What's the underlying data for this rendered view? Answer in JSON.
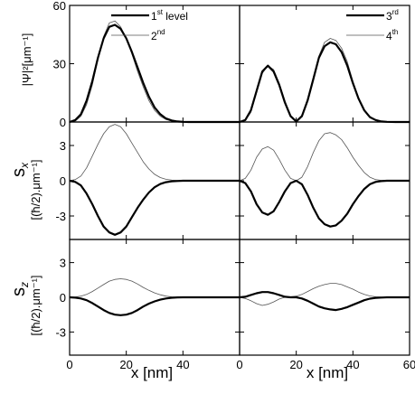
{
  "chart_data": {
    "type": "line",
    "x_label": "x [nm]",
    "panels": {
      "psi": {
        "ylabel": "|Ψ|²[μm⁻¹]",
        "ylim": [
          0,
          60
        ],
        "yticks": [
          "0",
          "30",
          "60"
        ],
        "ytick_values": [
          0,
          30,
          60
        ]
      },
      "sx": {
        "ylabel_symbol": "s",
        "ylabel_sub": "x",
        "ylabel_unit": "[(ħ/2).μm⁻¹]",
        "ylim": [
          -5,
          5
        ],
        "yticks": [
          "3",
          "0",
          "-3"
        ],
        "ytick_values": [
          3,
          0,
          -3
        ]
      },
      "sz": {
        "ylabel_symbol": "s",
        "ylabel_sub": "z",
        "ylabel_unit": "[(ħ/2).μm⁻¹]",
        "ylim": [
          -5,
          5
        ],
        "yticks": [
          "3",
          "0",
          "-3"
        ],
        "ytick_values": [
          3,
          0,
          -3
        ]
      }
    },
    "columns": [
      {
        "xlim": [
          0,
          60
        ],
        "xticks": [
          "0",
          "20",
          "40"
        ],
        "xtick_values": [
          0,
          20,
          40
        ],
        "legend": [
          {
            "base": "1",
            "sup": "st",
            "tail": " level",
            "style": "thick"
          },
          {
            "base": "2",
            "sup": "nd",
            "tail": "",
            "style": "thin"
          }
        ],
        "series": {
          "psi": {
            "thick": {
              "x": [
                0,
                2,
                4,
                6,
                8,
                10,
                12,
                14,
                16,
                18,
                20,
                22,
                24,
                26,
                28,
                30,
                32,
                34,
                36,
                38,
                40,
                42,
                44,
                46,
                48,
                50,
                55,
                60
              ],
              "y": [
                0,
                1,
                4,
                11,
                21,
                33,
                43,
                49,
                50,
                48,
                43,
                36,
                28,
                20,
                13,
                7.5,
                4,
                1.8,
                0.8,
                0.3,
                0.1,
                0,
                0,
                0,
                0,
                0,
                0,
                0
              ]
            },
            "thin": {
              "x": [
                0,
                2,
                4,
                6,
                8,
                10,
                12,
                14,
                16,
                18,
                20,
                22,
                24,
                26,
                28,
                30,
                32,
                34,
                36,
                38,
                40,
                42,
                44,
                46,
                48,
                50,
                55,
                60
              ],
              "y": [
                0,
                0.5,
                3,
                9,
                19,
                32,
                44,
                51,
                52,
                49,
                43,
                35,
                26,
                18,
                11,
                6,
                3,
                1.3,
                0.5,
                0.2,
                0,
                0,
                0,
                0,
                0,
                0,
                0,
                0
              ]
            }
          },
          "sx": {
            "thick": {
              "x": [
                0,
                2,
                4,
                6,
                8,
                10,
                12,
                14,
                16,
                18,
                20,
                22,
                24,
                26,
                28,
                30,
                32,
                34,
                36,
                38,
                40,
                42,
                44,
                46,
                48,
                50,
                55,
                60
              ],
              "y": [
                0,
                -0.1,
                -0.4,
                -1.1,
                -2.0,
                -3.0,
                -3.9,
                -4.4,
                -4.6,
                -4.4,
                -3.9,
                -3.1,
                -2.3,
                -1.6,
                -1.0,
                -0.55,
                -0.28,
                -0.12,
                -0.05,
                -0.02,
                0,
                0,
                0,
                0,
                0,
                0,
                0,
                0
              ]
            },
            "thin": {
              "x": [
                0,
                2,
                4,
                6,
                8,
                10,
                12,
                14,
                16,
                18,
                20,
                22,
                24,
                26,
                28,
                30,
                32,
                34,
                36,
                38,
                40,
                42,
                44,
                46,
                48,
                50,
                55,
                60
              ],
              "y": [
                0,
                0.1,
                0.4,
                1.1,
                2.1,
                3.1,
                4.0,
                4.6,
                4.8,
                4.6,
                4.0,
                3.2,
                2.4,
                1.6,
                1.0,
                0.55,
                0.27,
                0.12,
                0.05,
                0.02,
                0,
                0,
                0,
                0,
                0,
                0,
                0,
                0
              ]
            }
          },
          "sz": {
            "thick": {
              "x": [
                0,
                2,
                4,
                6,
                8,
                10,
                12,
                14,
                16,
                18,
                20,
                22,
                24,
                26,
                28,
                30,
                32,
                34,
                36,
                38,
                40,
                42,
                44,
                46,
                48,
                50,
                55,
                60
              ],
              "y": [
                0,
                -0.03,
                -0.1,
                -0.25,
                -0.5,
                -0.8,
                -1.1,
                -1.35,
                -1.5,
                -1.55,
                -1.5,
                -1.35,
                -1.1,
                -0.8,
                -0.55,
                -0.35,
                -0.2,
                -0.1,
                -0.04,
                -0.01,
                0,
                0,
                0,
                0,
                0,
                0,
                0,
                0
              ]
            },
            "thin": {
              "x": [
                0,
                2,
                4,
                6,
                8,
                10,
                12,
                14,
                16,
                18,
                20,
                22,
                24,
                26,
                28,
                30,
                32,
                34,
                36,
                38,
                40,
                42,
                44,
                46,
                48,
                50,
                55,
                60
              ],
              "y": [
                0,
                0.03,
                0.1,
                0.25,
                0.5,
                0.8,
                1.1,
                1.4,
                1.55,
                1.6,
                1.55,
                1.4,
                1.15,
                0.85,
                0.6,
                0.38,
                0.22,
                0.1,
                0.04,
                0.01,
                0,
                0,
                0,
                0,
                0,
                0,
                0,
                0
              ]
            }
          }
        }
      },
      {
        "xlim": [
          0,
          60
        ],
        "xticks": [
          "0",
          "20",
          "40",
          "60"
        ],
        "xtick_values": [
          0,
          20,
          40,
          60
        ],
        "legend": [
          {
            "base": "3",
            "sup": "rd",
            "tail": "",
            "style": "thick"
          },
          {
            "base": "4",
            "sup": "th",
            "tail": "",
            "style": "thin"
          }
        ],
        "series": {
          "psi": {
            "thick": {
              "x": [
                0,
                2,
                4,
                6,
                8,
                10,
                12,
                14,
                16,
                18,
                20,
                22,
                24,
                26,
                28,
                30,
                32,
                34,
                36,
                38,
                40,
                42,
                44,
                46,
                48,
                50,
                52,
                55,
                60
              ],
              "y": [
                0,
                1,
                6,
                16,
                26,
                29,
                26,
                19,
                10,
                3,
                0.3,
                3,
                11,
                22,
                33,
                39,
                41,
                40,
                36,
                29,
                20,
                12,
                6,
                2.5,
                1,
                0.3,
                0.1,
                0,
                0
              ]
            },
            "thin": {
              "x": [
                0,
                2,
                4,
                6,
                8,
                10,
                12,
                14,
                16,
                18,
                20,
                22,
                24,
                26,
                28,
                30,
                32,
                34,
                36,
                38,
                40,
                42,
                44,
                46,
                48,
                50,
                52,
                55,
                60
              ],
              "y": [
                0,
                0.8,
                5,
                15,
                25,
                29,
                27,
                20,
                11,
                3.5,
                0.5,
                3.5,
                12,
                23,
                34,
                41,
                43,
                42,
                38,
                31,
                21,
                12.5,
                6,
                2.5,
                1,
                0.3,
                0.1,
                0,
                0
              ]
            }
          },
          "sx": {
            "thick": {
              "x": [
                0,
                2,
                4,
                6,
                8,
                10,
                12,
                14,
                16,
                18,
                20,
                22,
                24,
                26,
                28,
                30,
                32,
                34,
                36,
                38,
                40,
                42,
                44,
                46,
                48,
                50,
                52,
                55,
                60
              ],
              "y": [
                0,
                -0.2,
                -0.9,
                -2.0,
                -2.7,
                -2.9,
                -2.6,
                -1.8,
                -0.9,
                -0.2,
                0,
                -0.3,
                -1.2,
                -2.3,
                -3.2,
                -3.7,
                -3.9,
                -3.8,
                -3.4,
                -2.8,
                -2.0,
                -1.3,
                -0.7,
                -0.3,
                -0.1,
                -0.03,
                0,
                0,
                0
              ]
            },
            "thin": {
              "x": [
                0,
                2,
                4,
                6,
                8,
                10,
                12,
                14,
                16,
                18,
                20,
                22,
                24,
                26,
                28,
                30,
                32,
                34,
                36,
                38,
                40,
                42,
                44,
                46,
                48,
                50,
                52,
                55,
                60
              ],
              "y": [
                0,
                0.2,
                0.9,
                2.0,
                2.7,
                2.9,
                2.6,
                1.8,
                0.9,
                0.2,
                0,
                0.3,
                1.2,
                2.4,
                3.4,
                4.0,
                4.1,
                3.9,
                3.5,
                2.8,
                2.0,
                1.3,
                0.7,
                0.3,
                0.1,
                0.03,
                0,
                0,
                0
              ]
            }
          },
          "sz": {
            "thick": {
              "x": [
                0,
                2,
                4,
                6,
                8,
                10,
                12,
                14,
                16,
                18,
                20,
                22,
                24,
                26,
                28,
                30,
                32,
                34,
                36,
                38,
                40,
                42,
                44,
                46,
                48,
                50,
                52,
                55,
                60
              ],
              "y": [
                0,
                0.05,
                0.2,
                0.35,
                0.45,
                0.45,
                0.35,
                0.2,
                0.05,
                0,
                0,
                -0.1,
                -0.3,
                -0.55,
                -0.8,
                -0.95,
                -1.05,
                -1.1,
                -1.0,
                -0.85,
                -0.65,
                -0.45,
                -0.25,
                -0.12,
                -0.05,
                -0.02,
                0,
                0,
                0
              ]
            },
            "thin": {
              "x": [
                0,
                2,
                4,
                6,
                8,
                10,
                12,
                14,
                16,
                18,
                20,
                22,
                24,
                26,
                28,
                30,
                32,
                34,
                36,
                38,
                40,
                42,
                44,
                46,
                48,
                50,
                52,
                55,
                60
              ],
              "y": [
                0,
                -0.1,
                -0.3,
                -0.55,
                -0.7,
                -0.6,
                -0.4,
                -0.15,
                0,
                0.05,
                0.1,
                0.25,
                0.5,
                0.75,
                0.95,
                1.1,
                1.2,
                1.2,
                1.1,
                0.9,
                0.7,
                0.45,
                0.25,
                0.12,
                0.05,
                0.02,
                0,
                0,
                0
              ]
            }
          }
        }
      }
    ],
    "grid": false,
    "legend_placement": "top-right"
  }
}
